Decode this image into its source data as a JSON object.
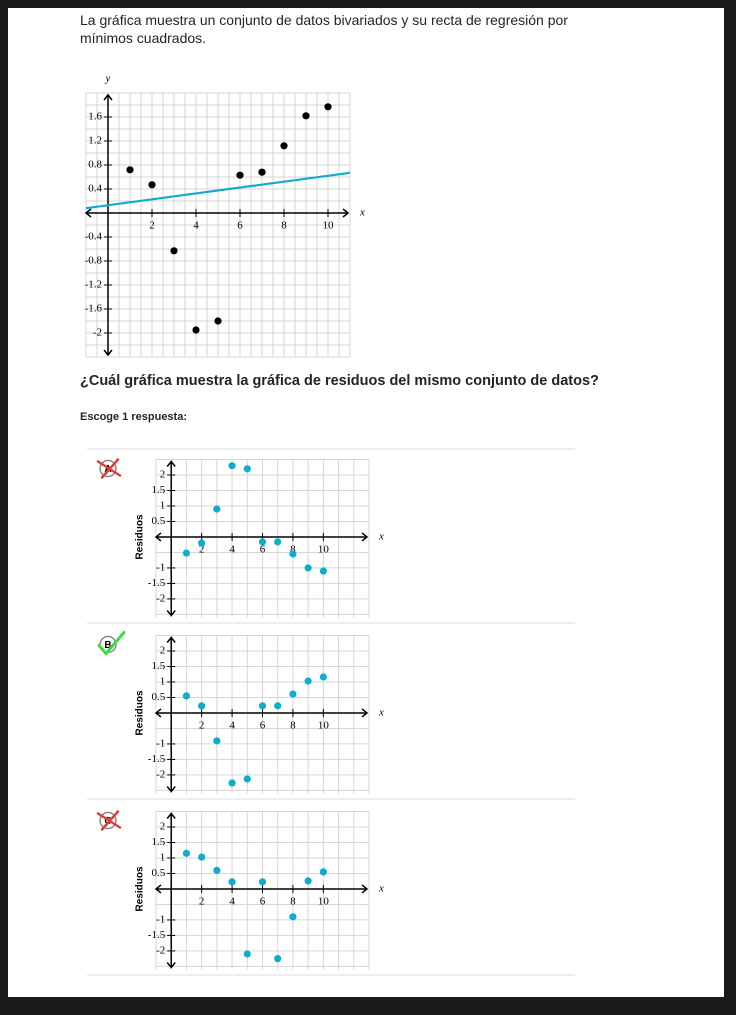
{
  "question": {
    "intro": "La gráfica muestra un conjunto de datos bivariados y su recta de regresión por mínimos cuadrados.",
    "prompt": "¿Cuál gráfica muestra la gráfica de residuos del mismo conjunto de datos?",
    "instruction": "Escoge 1 respuesta:"
  },
  "main_chart": {
    "type": "scatter",
    "x_label": "x",
    "y_label": "y",
    "x": [
      1,
      2,
      3,
      4,
      5,
      6,
      7,
      8,
      9,
      10
    ],
    "y": [
      0.72,
      0.47,
      -0.63,
      -1.95,
      -1.8,
      0.63,
      0.68,
      1.12,
      1.62,
      1.77
    ],
    "color": "#000000",
    "regression": {
      "x": [
        -1,
        11
      ],
      "y": [
        0.08,
        0.67
      ],
      "color": "#11accd"
    },
    "xlim": [
      -1,
      11
    ],
    "ylim": [
      -2.4,
      2.0
    ],
    "xticks": [
      2,
      4,
      6,
      8,
      10
    ],
    "yticks": [
      1.6,
      1.2,
      0.8,
      0.4,
      -0.4,
      -0.8,
      -1.2,
      -1.6,
      -2
    ],
    "grid": {
      "x_step": 0.5,
      "y_step": 0.2
    }
  },
  "options": [
    {
      "letter": "A",
      "status": "incorrect",
      "chart": {
        "type": "scatter",
        "x_label": "x",
        "y_label": "Residuos",
        "x": [
          1,
          2,
          3,
          4,
          5,
          6,
          7,
          8,
          9,
          10
        ],
        "y": [
          -0.52,
          -0.2,
          0.9,
          2.3,
          2.2,
          -0.16,
          -0.16,
          -0.55,
          -1.0,
          -1.1
        ],
        "color": "#11accd",
        "xlim": [
          -1,
          13
        ],
        "ylim": [
          -2.6,
          2.5
        ],
        "xticks": [
          2,
          4,
          6,
          8,
          10
        ],
        "yticks": [
          2,
          1.5,
          1,
          0.5,
          -1,
          -1.5,
          -2
        ],
        "grid": {
          "x_step": 1,
          "y_step": 0.5
        }
      }
    },
    {
      "letter": "B",
      "status": "correct",
      "chart": {
        "type": "scatter",
        "x_label": "x",
        "y_label": "Residuos",
        "x": [
          1,
          2,
          3,
          4,
          5,
          6,
          7,
          8,
          9,
          10
        ],
        "y": [
          0.55,
          0.23,
          -0.9,
          -2.26,
          -2.13,
          0.23,
          0.23,
          0.61,
          1.03,
          1.16
        ],
        "color": "#11accd",
        "xlim": [
          -1,
          13
        ],
        "ylim": [
          -2.6,
          2.5
        ],
        "xticks": [
          2,
          4,
          6,
          8,
          10
        ],
        "yticks": [
          2,
          1.5,
          1,
          0.5,
          -1,
          -1.5,
          -2
        ],
        "grid": {
          "x_step": 1,
          "y_step": 0.5
        }
      }
    },
    {
      "letter": "C",
      "status": "incorrect",
      "chart": {
        "type": "scatter",
        "x_label": "x",
        "y_label": "Residuos",
        "x": [
          1,
          2,
          3,
          4,
          5,
          6,
          7,
          8,
          9,
          10
        ],
        "y": [
          1.15,
          1.03,
          0.6,
          0.23,
          -2.1,
          0.23,
          -2.25,
          -0.9,
          0.26,
          0.55
        ],
        "color": "#11accd",
        "xlim": [
          -1,
          13
        ],
        "ylim": [
          -2.6,
          2.5
        ],
        "xticks": [
          2,
          4,
          6,
          8,
          10
        ],
        "yticks": [
          2,
          1.5,
          1,
          0.5,
          -1,
          -1.5,
          -2
        ],
        "grid": {
          "x_step": 1,
          "y_step": 0.5
        }
      }
    }
  ]
}
